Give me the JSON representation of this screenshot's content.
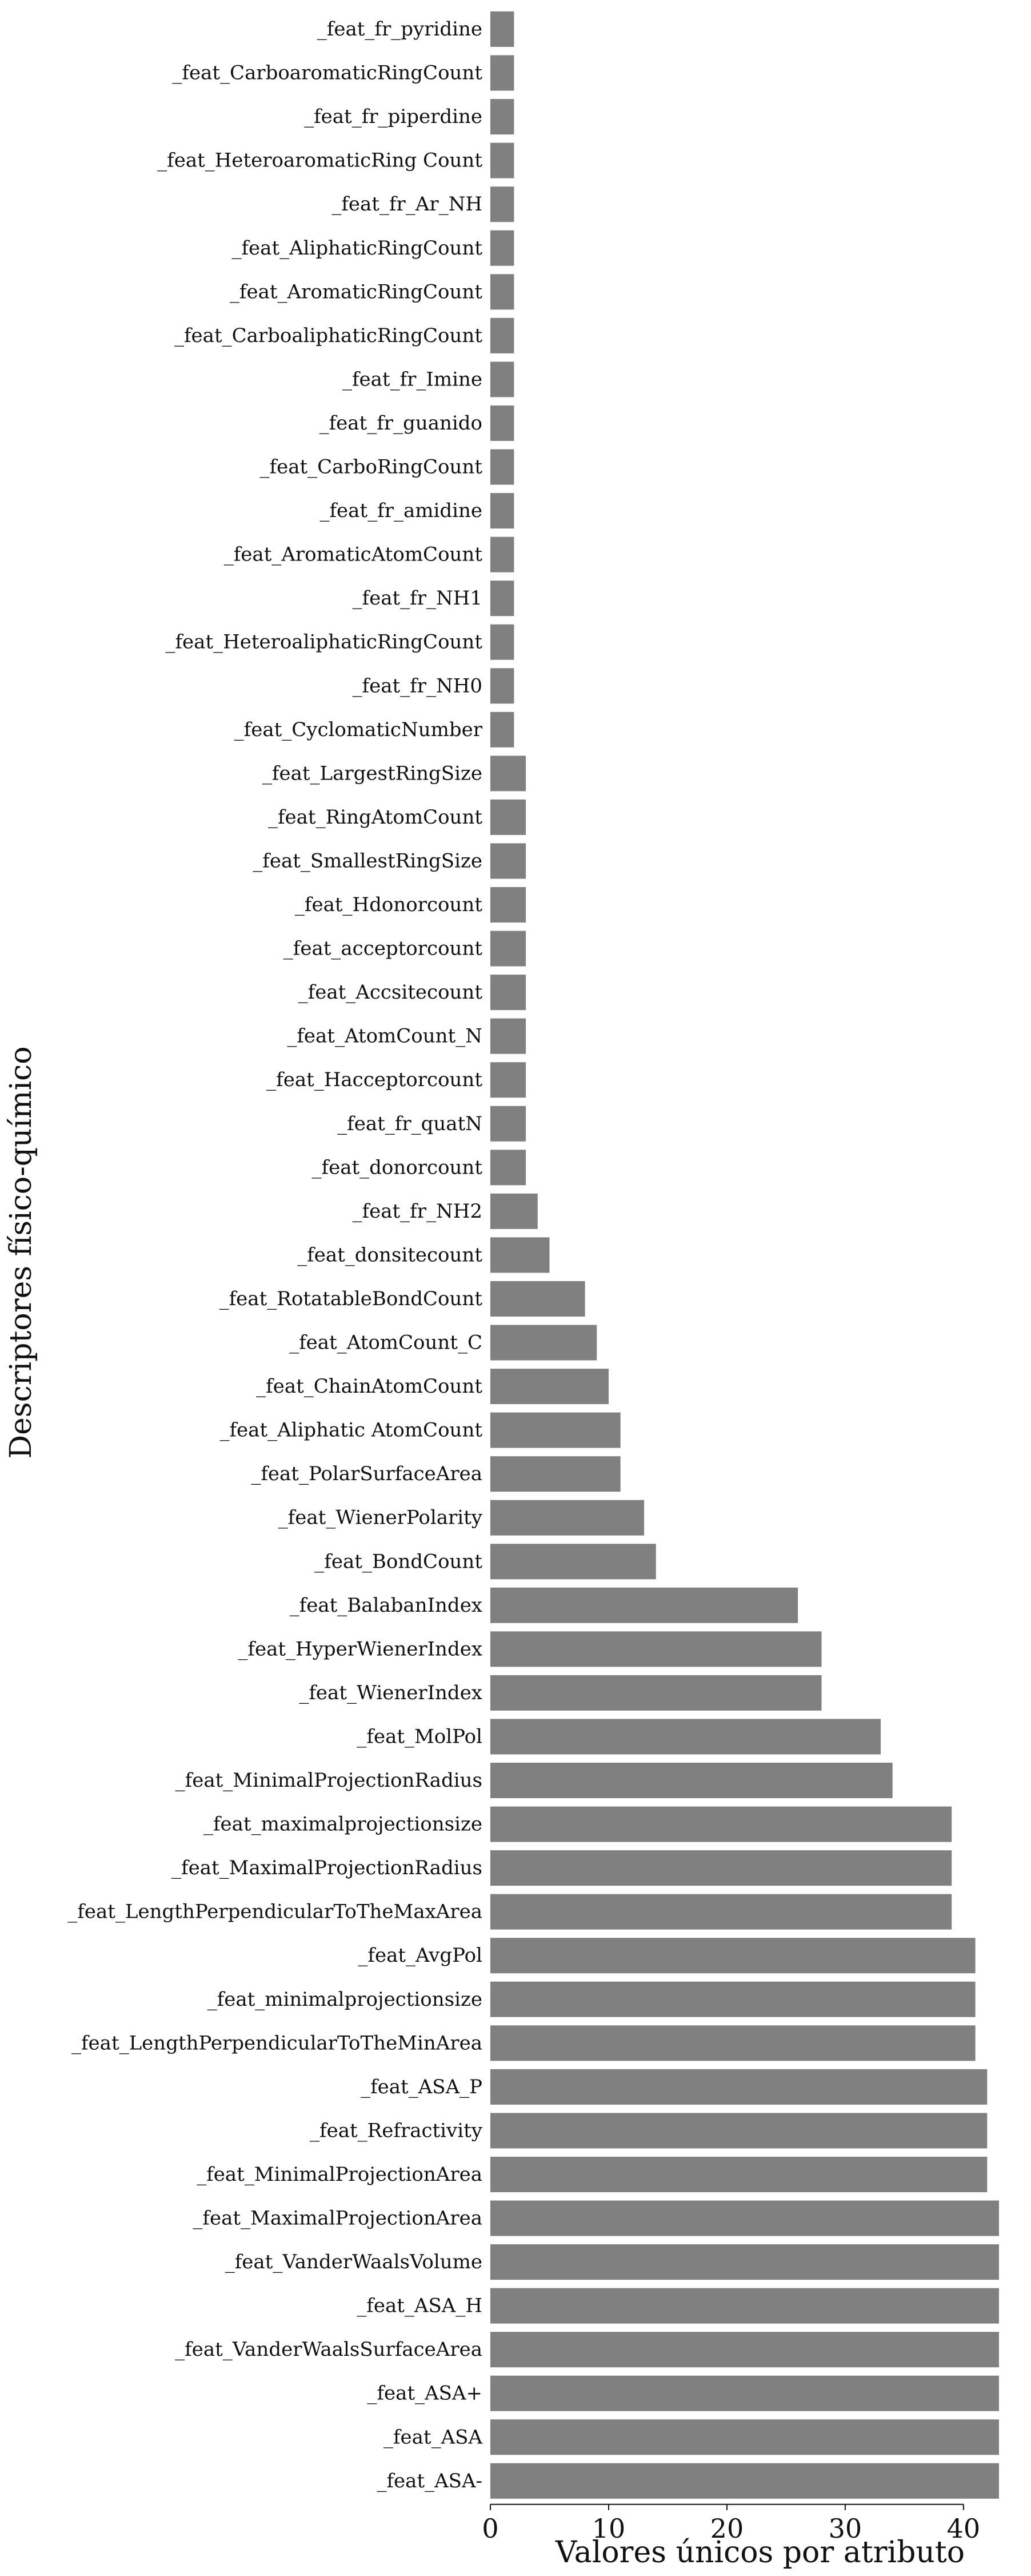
{
  "chart_data": {
    "type": "bar",
    "orientation": "horizontal",
    "title": "",
    "xlabel": "Valores únicos por atributo",
    "ylabel": "Descriptores físico-químico",
    "xlim": [
      0,
      43
    ],
    "xticks": [
      "0",
      "10",
      "20",
      "30",
      "40"
    ],
    "grid": false,
    "bar_color": "#808080",
    "categories": [
      "_feat_fr_pyridine",
      "_feat_CarboaromaticRingCount",
      "_feat_fr_piperdine",
      "_feat_HeteroaromaticRing Count",
      "_feat_fr_Ar_NH",
      "_feat_AliphaticRingCount",
      "_feat_AromaticRingCount",
      "_feat_CarboaliphaticRingCount",
      "_feat_fr_Imine",
      "_feat_fr_guanido",
      "_feat_CarboRingCount",
      "_feat_fr_amidine",
      "_feat_AromaticAtomCount",
      "_feat_fr_NH1",
      "_feat_HeteroaliphaticRingCount",
      "_feat_fr_NH0",
      "_feat_CyclomaticNumber",
      "_feat_LargestRingSize",
      "_feat_RingAtomCount",
      "_feat_SmallestRingSize",
      "_feat_Hdonorcount",
      "_feat_acceptorcount",
      "_feat_Accsitecount",
      "_feat_AtomCount_N",
      "_feat_Hacceptorcount",
      "_feat_fr_quatN",
      "_feat_donorcount",
      "_feat_fr_NH2",
      "_feat_donsitecount",
      "_feat_RotatableBondCount",
      "_feat_AtomCount_C",
      "_feat_ChainAtomCount",
      "_feat_Aliphatic AtomCount",
      "_feat_PolarSurfaceArea",
      "_feat_WienerPolarity",
      "_feat_BondCount",
      "_feat_BalabanIndex",
      "_feat_HyperWienerIndex",
      "_feat_WienerIndex",
      "_feat_MolPol",
      "_feat_MinimalProjectionRadius",
      "_feat_maximalprojectionsize",
      "_feat_MaximalProjectionRadius",
      "_feat_LengthPerpendicularToTheMaxArea",
      "_feat_AvgPol",
      "_feat_minimalprojectionsize",
      "_feat_LengthPerpendicularToTheMinArea",
      "_feat_ASA_P",
      "_feat_Refractivity",
      "_feat_MinimalProjectionArea",
      "_feat_MaximalProjectionArea",
      "_feat_VanderWaalsVolume",
      "_feat_ASA_H",
      "_feat_VanderWaalsSurfaceArea",
      "_feat_ASA+",
      "_feat_ASA",
      "_feat_ASA-"
    ],
    "values": [
      2,
      2,
      2,
      2,
      2,
      2,
      2,
      2,
      2,
      2,
      2,
      2,
      2,
      2,
      2,
      2,
      2,
      3,
      3,
      3,
      3,
      3,
      3,
      3,
      3,
      3,
      3,
      4,
      5,
      8,
      9,
      10,
      11,
      11,
      13,
      14,
      26,
      28,
      28,
      33,
      34,
      39,
      39,
      39,
      41,
      41,
      41,
      42,
      42,
      42,
      43,
      43,
      43,
      43,
      43,
      43,
      43
    ]
  }
}
